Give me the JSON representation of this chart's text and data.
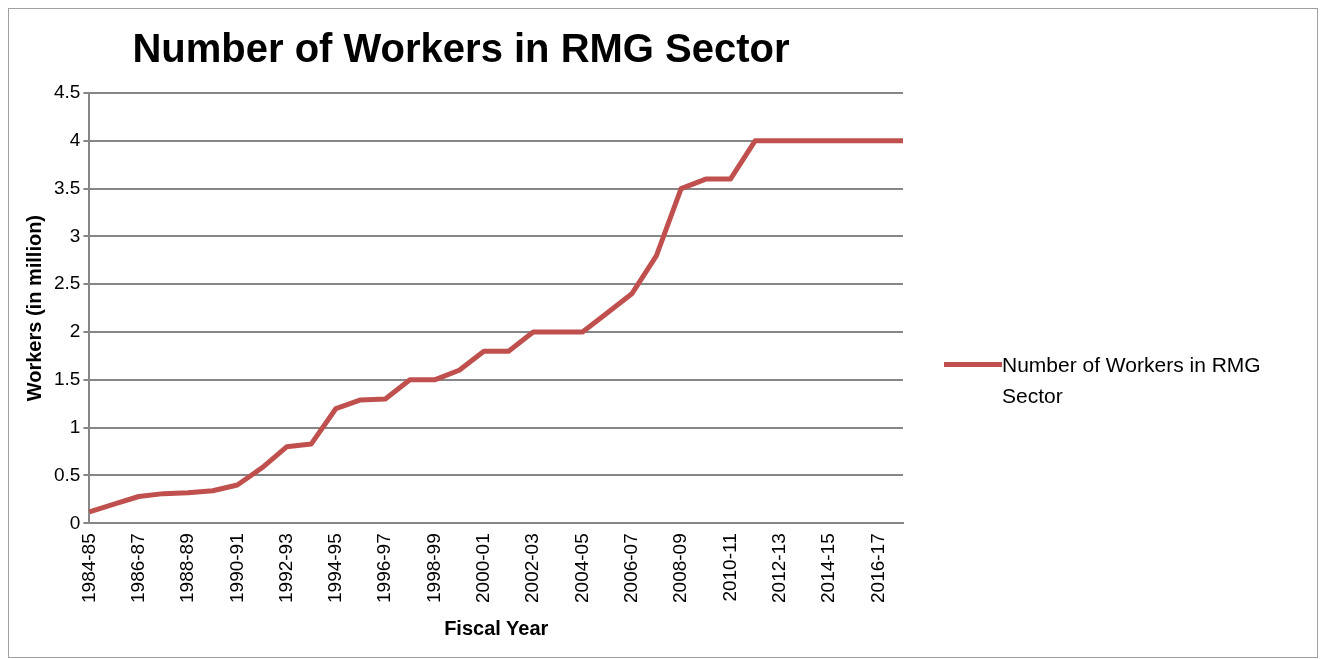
{
  "chart_data": {
    "type": "line",
    "title": "Number of Workers in RMG Sector",
    "xlabel": "Fiscal Year",
    "ylabel": "Workers (in million)",
    "categories": [
      "1984-85",
      null,
      "1986-87",
      null,
      "1988-89",
      null,
      "1990-91",
      null,
      "1992-93",
      null,
      "1994-95",
      null,
      "1996-97",
      null,
      "1998-99",
      null,
      "2000-01",
      null,
      "2002-03",
      null,
      "2004-05",
      null,
      "2006-07",
      null,
      "2008-09",
      null,
      "2010-11",
      null,
      "2012-13",
      null,
      "2014-15",
      null,
      "2016-17",
      null
    ],
    "series": [
      {
        "name": "Number of Workers in RMG Sector",
        "color": "#c0504d",
        "values": [
          0.12,
          0.2,
          0.28,
          0.31,
          0.32,
          0.34,
          0.4,
          0.58,
          0.8,
          0.83,
          1.2,
          1.29,
          1.3,
          1.5,
          1.5,
          1.6,
          1.8,
          1.8,
          2.0,
          2.0,
          2.0,
          2.2,
          2.4,
          2.8,
          3.5,
          3.6,
          3.6,
          4,
          4,
          4,
          4,
          4,
          4,
          4
        ]
      }
    ],
    "ylim": [
      0,
      4.5
    ],
    "yticks": [
      0,
      0.5,
      1,
      1.5,
      2,
      2.5,
      3,
      3.5,
      4,
      4.5
    ],
    "grid": "y",
    "legend": "right",
    "marker": "none",
    "line_style": "solid"
  }
}
